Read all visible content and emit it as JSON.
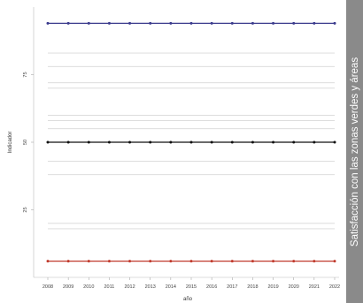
{
  "sidebar_title": "Satisfacción con las zonas verdes y áreas",
  "chart_data": {
    "type": "line",
    "title": "",
    "xlabel": "año",
    "ylabel": "Indicador",
    "x": [
      "2008",
      "2009",
      "2010",
      "2011",
      "2012",
      "2013",
      "2014",
      "2015",
      "2016",
      "2017",
      "2018",
      "2019",
      "2020",
      "2021",
      "2022"
    ],
    "ylim": [
      0,
      100
    ],
    "yticks": [
      {
        "value": 25,
        "label": "25"
      },
      {
        "value": 50,
        "label": "50"
      },
      {
        "value": 75,
        "label": "75"
      }
    ],
    "grid": true,
    "series": [
      {
        "color": "#3a3a8c",
        "values": [
          94,
          94,
          94,
          94,
          94,
          94,
          94,
          94,
          94,
          94,
          94,
          94,
          94,
          94,
          94
        ]
      },
      {
        "color": "#111111",
        "values": [
          50,
          50,
          50,
          50,
          50,
          50,
          50,
          50,
          50,
          50,
          50,
          50,
          50,
          50,
          50
        ]
      },
      {
        "color": "#c0392b",
        "values": [
          6,
          6,
          6,
          6,
          6,
          6,
          6,
          6,
          6,
          6,
          6,
          6,
          6,
          6,
          6
        ]
      }
    ],
    "background_lines": [
      83,
      78,
      72,
      70,
      60,
      58,
      55,
      43,
      38,
      20,
      18
    ],
    "colors": {
      "sidebar": "#8a8a8a"
    }
  }
}
